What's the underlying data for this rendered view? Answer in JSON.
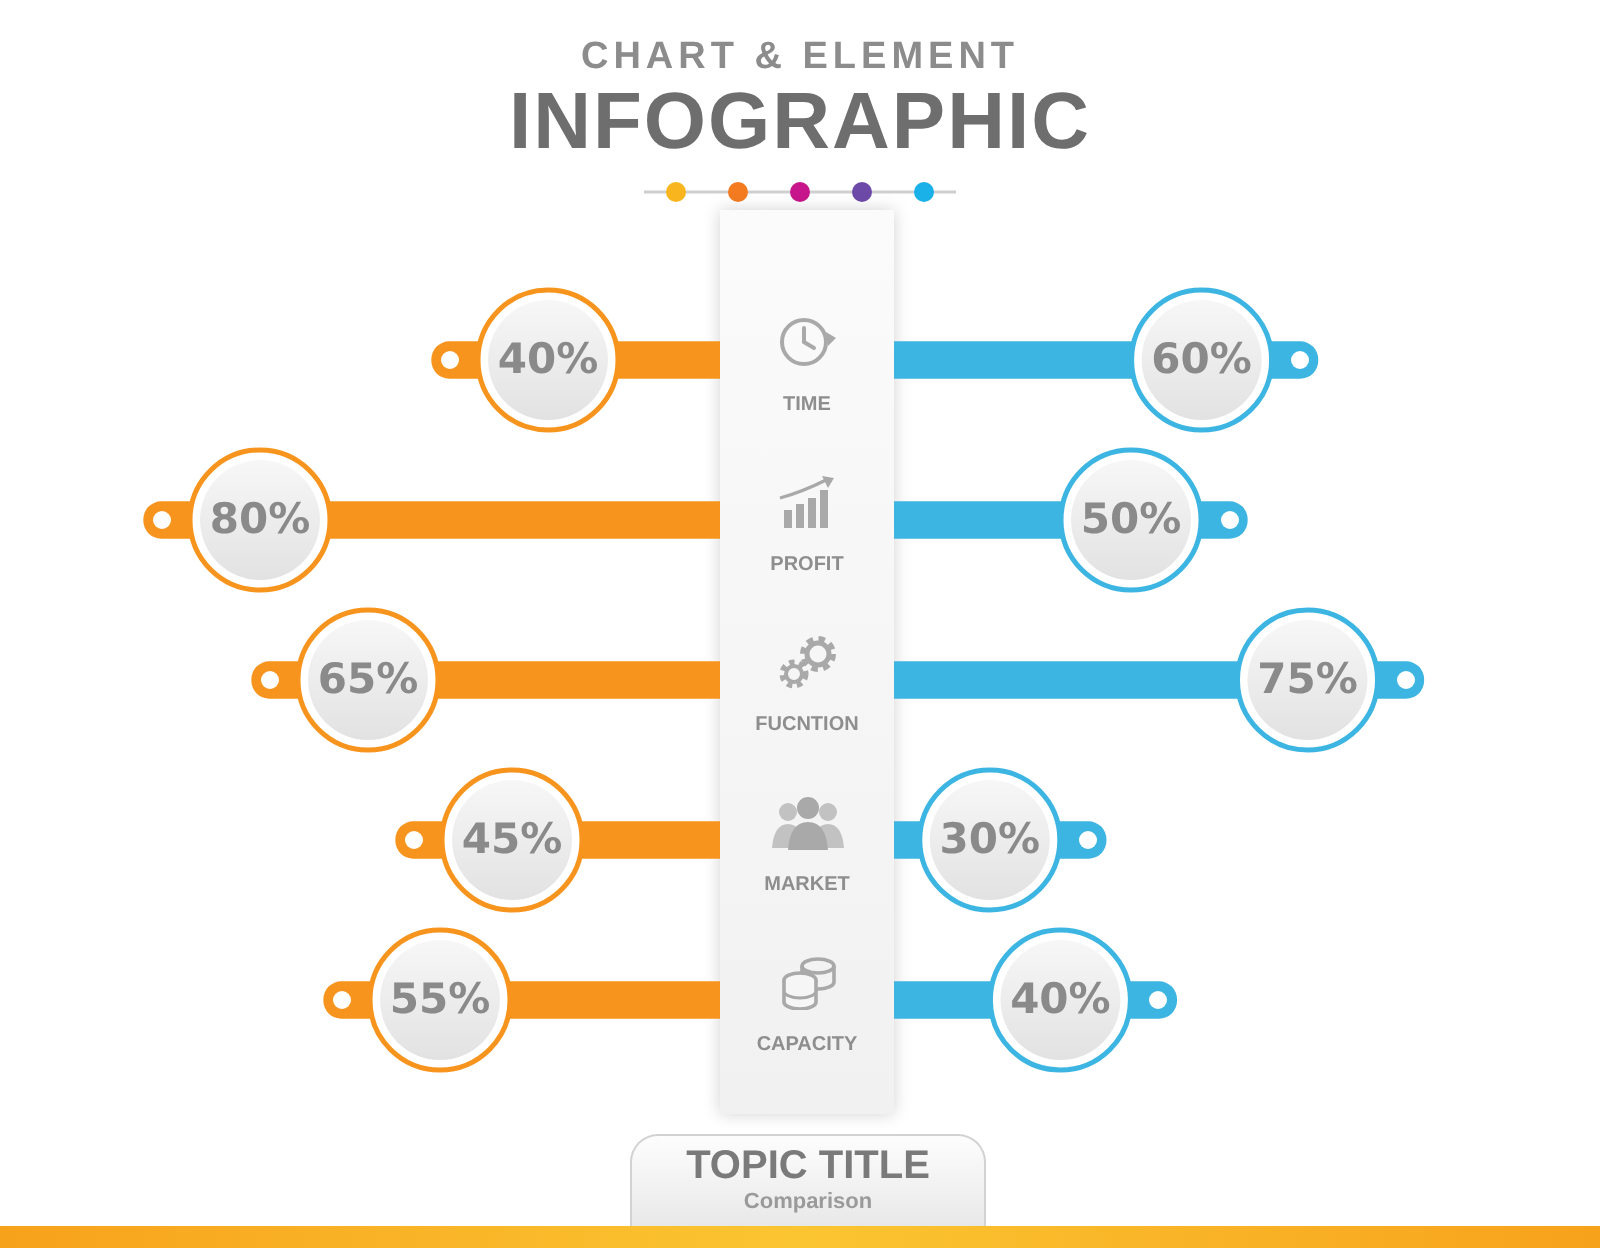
{
  "chart_data": [
    {
      "type": "bar",
      "orientation": "horizontal",
      "title": "INFOGRAPHIC",
      "subtitle": "CHART & ELEMENT",
      "categories": [
        "TIME",
        "PROFIT",
        "FUCNTION",
        "MARKET",
        "CAPACITY"
      ],
      "color": "#f7941d",
      "values": [
        40,
        80,
        65,
        45,
        55
      ],
      "value_labels": [
        "40%",
        "80%",
        "65%",
        "45%",
        "55%"
      ],
      "xlim": [
        100,
        0
      ],
      "tick_labels": "y",
      "annotations": [
        "TOPIC TITLE",
        "Comparison"
      ]
    },
    {
      "type": "bar",
      "orientation": "horizontal",
      "categories": [
        null,
        null,
        null,
        null,
        null
      ],
      "color": "#3db5e2",
      "values": [
        60,
        50,
        75,
        30,
        40
      ],
      "value_labels": [
        "60%",
        "50%",
        "75%",
        "30%",
        "40%"
      ],
      "xlim": [
        0,
        100
      ],
      "tick_labels": false
    }
  ]
}
